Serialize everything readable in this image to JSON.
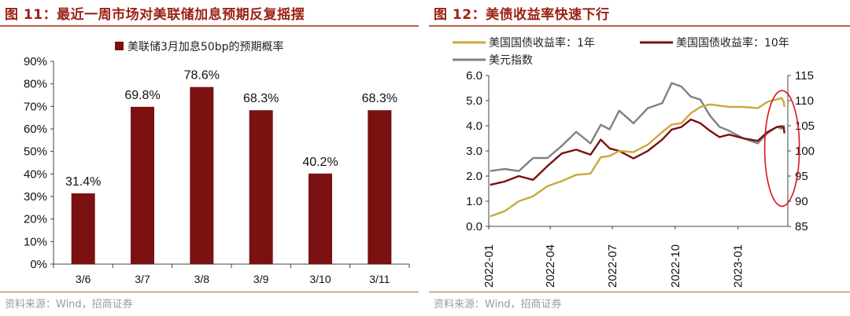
{
  "left": {
    "title": "图 11：最近一周市场对美联储加息预期反复摇摆",
    "source": "资料来源：Wind，招商证券",
    "chart_data": {
      "type": "bar",
      "categories": [
        "3/6",
        "3/7",
        "3/8",
        "3/9",
        "3/10",
        "3/11"
      ],
      "series": [
        {
          "name": "美联储3月加息50bp的预期概率",
          "values": [
            31.4,
            69.8,
            78.6,
            68.3,
            40.2,
            68.3
          ],
          "color": "#7b1111"
        }
      ],
      "data_labels": [
        "31.4%",
        "69.8%",
        "78.6%",
        "68.3%",
        "40.2%",
        "68.3%"
      ],
      "ylim": [
        0,
        90
      ],
      "yticks": [
        0,
        10,
        20,
        30,
        40,
        50,
        60,
        70,
        80,
        90
      ],
      "ytick_labels": [
        "0%",
        "10%",
        "20%",
        "30%",
        "40%",
        "50%",
        "60%",
        "70%",
        "80%",
        "90%"
      ],
      "grid": false,
      "legend_position": "top-center"
    }
  },
  "right": {
    "title": "图 12：美债收益率快速下行",
    "source": "资料来源：Wind，招商证券",
    "chart_data": {
      "type": "line",
      "x_tick_labels": [
        "2022-01",
        "2022-04",
        "2022-07",
        "2022-10",
        "2023-01"
      ],
      "x_tick_dates": [
        "2022-01-01",
        "2022-04-01",
        "2022-07-01",
        "2022-10-01",
        "2023-01-01"
      ],
      "x_range": [
        "2022-01-01",
        "2023-03-15"
      ],
      "y_left": {
        "ylim": [
          0,
          6
        ],
        "ticks": [
          0,
          1,
          2,
          3,
          4,
          5,
          6
        ],
        "tick_labels": [
          "0.0",
          "1.0",
          "2.0",
          "3.0",
          "4.0",
          "5.0",
          "6.0"
        ]
      },
      "y_right": {
        "ylim": [
          85,
          115
        ],
        "ticks": [
          85,
          90,
          95,
          100,
          105,
          110,
          115
        ],
        "tick_labels": [
          "85",
          "90",
          "95",
          "100",
          "105",
          "110",
          "115"
        ]
      },
      "grid": false,
      "legend_position": "top-left",
      "annotation": "red-ellipse-around-latest-values",
      "series": [
        {
          "name": "美国国债收益率：1年",
          "axis": "left",
          "color": "#c9a93a",
          "x": [
            "2022-01-03",
            "2022-01-24",
            "2022-02-14",
            "2022-03-07",
            "2022-03-28",
            "2022-04-18",
            "2022-05-09",
            "2022-05-30",
            "2022-06-14",
            "2022-06-27",
            "2022-07-11",
            "2022-08-01",
            "2022-08-22",
            "2022-09-12",
            "2022-09-26",
            "2022-10-10",
            "2022-10-24",
            "2022-11-07",
            "2022-11-21",
            "2022-12-05",
            "2022-12-19",
            "2023-01-09",
            "2023-01-30",
            "2023-02-13",
            "2023-02-27",
            "2023-03-06",
            "2023-03-09",
            "2023-03-10"
          ],
          "values": [
            0.4,
            0.6,
            1.0,
            1.2,
            1.6,
            1.8,
            2.05,
            2.1,
            2.75,
            2.8,
            3.0,
            2.95,
            3.25,
            3.75,
            4.05,
            4.1,
            4.5,
            4.75,
            4.85,
            4.8,
            4.75,
            4.75,
            4.7,
            4.95,
            5.05,
            5.1,
            4.95,
            4.75
          ]
        },
        {
          "name": "美国国债收益率：10年",
          "axis": "left",
          "color": "#7b1111",
          "x": [
            "2022-01-03",
            "2022-01-24",
            "2022-02-14",
            "2022-03-07",
            "2022-03-28",
            "2022-04-18",
            "2022-05-09",
            "2022-05-30",
            "2022-06-14",
            "2022-06-27",
            "2022-07-11",
            "2022-08-01",
            "2022-08-22",
            "2022-09-12",
            "2022-09-26",
            "2022-10-10",
            "2022-10-24",
            "2022-11-07",
            "2022-11-21",
            "2022-12-05",
            "2022-12-19",
            "2023-01-09",
            "2023-01-30",
            "2023-02-13",
            "2023-02-27",
            "2023-03-06",
            "2023-03-09",
            "2023-03-10"
          ],
          "values": [
            1.65,
            1.78,
            2.0,
            1.85,
            2.4,
            2.9,
            3.05,
            2.85,
            3.45,
            3.1,
            3.0,
            2.7,
            3.0,
            3.45,
            3.85,
            3.95,
            4.25,
            4.1,
            3.8,
            3.55,
            3.65,
            3.5,
            3.4,
            3.75,
            3.95,
            3.98,
            3.92,
            3.7
          ]
        },
        {
          "name": "美元指数",
          "axis": "right",
          "color": "#808080",
          "x": [
            "2022-01-03",
            "2022-01-24",
            "2022-02-14",
            "2022-03-07",
            "2022-03-28",
            "2022-04-18",
            "2022-05-09",
            "2022-05-30",
            "2022-06-14",
            "2022-06-27",
            "2022-07-11",
            "2022-08-01",
            "2022-08-22",
            "2022-09-12",
            "2022-09-26",
            "2022-10-10",
            "2022-10-24",
            "2022-11-07",
            "2022-11-21",
            "2022-12-05",
            "2022-12-19",
            "2023-01-09",
            "2023-01-30",
            "2023-02-13",
            "2023-02-27",
            "2023-03-06",
            "2023-03-09",
            "2023-03-10"
          ],
          "values": [
            96.0,
            96.4,
            96.0,
            98.6,
            98.6,
            101.0,
            103.8,
            101.5,
            105.2,
            104.3,
            108.0,
            105.5,
            108.5,
            109.5,
            113.5,
            112.8,
            110.8,
            110.2,
            107.0,
            104.8,
            104.0,
            102.5,
            101.5,
            103.5,
            104.8,
            104.4,
            105.0,
            104.4
          ]
        }
      ]
    }
  }
}
